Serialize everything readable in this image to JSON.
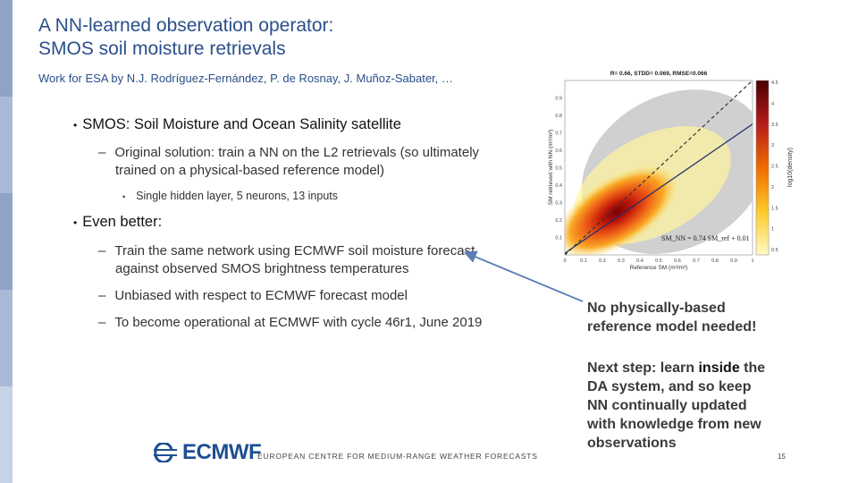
{
  "slide": {
    "title_line1": "A NN-learned observation operator:",
    "title_line2": "SMOS soil moisture retrievals",
    "subtitle": "Work for ESA by N.J. Rodríguez-Fernández, P. de Rosnay, J. Muñoz-Sabater, …",
    "bullets": {
      "b1": "SMOS: Soil Moisture and Ocean Salinity satellite",
      "b1_sub1_line1": "Original solution: train a NN on the L2 retrievals (so ultimately",
      "b1_sub1_line2": "trained on a physical-based reference model)",
      "b1_sub1_sub1": "Single hidden layer, 5 neurons, 13 inputs",
      "b2": "Even better:",
      "b2_sub1_line1": "Train the same network using ECMWF soil moisture forecast",
      "b2_sub1_line2": "against observed SMOS brightness temperatures",
      "b2_sub2": "Unbiased with respect to ECMWF forecast model",
      "b2_sub3": "To become operational at ECMWF with cycle 46r1, June 2019"
    },
    "bullet_glyph": "•",
    "dash_glyph": "–",
    "note1_line1": "No physically-based",
    "note1_line2": "reference model needed!",
    "note2_line1_a": "Next step: learn ",
    "note2_line1_b": "inside",
    "note2_line1_c": " the",
    "note2_line2": "DA system, and so keep",
    "note2_line3": "NN continually updated",
    "note2_line4": "with knowledge from new",
    "note2_line5": "observations",
    "logo_text": "ECMWF",
    "footer": "EUROPEAN CENTRE FOR MEDIUM-RANGE WEATHER FORECASTS",
    "page_number": "15",
    "colors": {
      "title": "#2a4f8a",
      "sidebar": [
        "#8fa3c7",
        "#a9bad6",
        "#8fa3c7",
        "#a9bad6",
        "#c6d2e6"
      ],
      "arrow": "#5b7fb5",
      "logo": "#1d4f91"
    }
  },
  "chart_data": {
    "type": "scatter",
    "title": "R= 0.66, STDD= 0.069, RMSE=0.066",
    "xlabel": "Reference SM (m³/m³)",
    "ylabel": "SM retrieved with NN (m³/m³)",
    "colorbar_label": "log10(density)",
    "xlim": [
      0,
      1
    ],
    "ylim": [
      0,
      1
    ],
    "x_ticks": [
      "0",
      "0.1",
      "0.2",
      "0.3",
      "0.4",
      "0.5",
      "0.6",
      "0.7",
      "0.8",
      "0.9",
      "1"
    ],
    "y_ticks": [
      "0.1",
      "0.2",
      "0.3",
      "0.4",
      "0.5",
      "0.6",
      "0.7",
      "0.8",
      "0.9"
    ],
    "colorbar_ticks": [
      "4.5",
      "4",
      "3.5",
      "3",
      "2.5",
      "2",
      "1.5",
      "1",
      "0.5"
    ],
    "fit_equation": "SM_NN = 0.74 SM_ref + 0.01",
    "fit": {
      "slope": 0.74,
      "intercept": 0.01
    },
    "identity_line": {
      "slope": 1,
      "intercept": 0
    },
    "density_blob": {
      "center_x": 0.25,
      "center_y": 0.22
    }
  }
}
